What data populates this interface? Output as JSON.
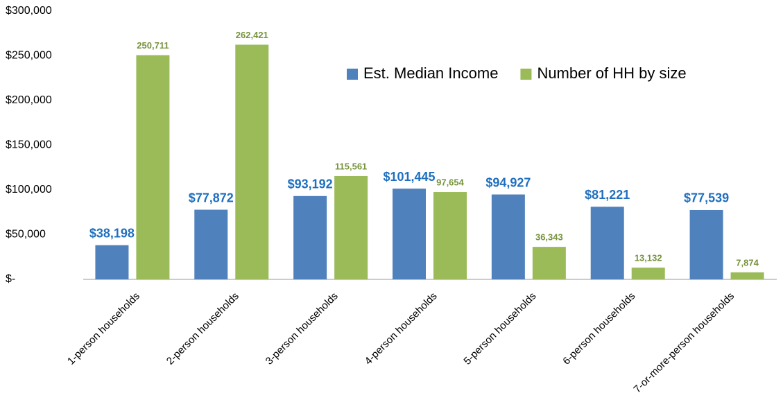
{
  "chart_data": {
    "type": "bar",
    "categories": [
      "1-person households",
      "2-person households",
      "3-person households",
      "4-person households",
      "5-person households",
      "6-person households",
      "7-or-more-person households"
    ],
    "series": [
      {
        "name": "Est. Median Income",
        "color": "#4f81bd",
        "label_color": "#1f6fbf",
        "values": [
          38198,
          77872,
          93192,
          101445,
          94927,
          81221,
          77539
        ],
        "value_labels": [
          "$38,198",
          "$77,872",
          "$93,192",
          "$101,445",
          "$94,927",
          "$81,221",
          "$77,539"
        ]
      },
      {
        "name": "Number of HH by size",
        "color": "#9bbb59",
        "label_color": "#77933c",
        "values": [
          250711,
          262421,
          115561,
          97654,
          36343,
          13132,
          7874
        ],
        "value_labels": [
          "250,711",
          "262,421",
          "115,561",
          "97,654",
          "36,343",
          "13,132",
          "7,874"
        ]
      }
    ],
    "ylim": [
      0,
      300000
    ],
    "yticks": [
      {
        "value": 0,
        "label": "$-"
      },
      {
        "value": 50000,
        "label": "$50,000"
      },
      {
        "value": 100000,
        "label": "$100,000"
      },
      {
        "value": 150000,
        "label": "$150,000"
      },
      {
        "value": 200000,
        "label": "$200,000"
      },
      {
        "value": 250000,
        "label": "$250,000"
      },
      {
        "value": 300000,
        "label": "$300,000"
      }
    ],
    "grid": false,
    "legend_position": "top-right"
  }
}
